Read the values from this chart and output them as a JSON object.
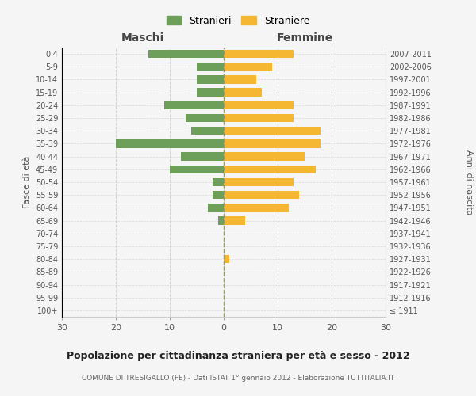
{
  "age_groups": [
    "100+",
    "95-99",
    "90-94",
    "85-89",
    "80-84",
    "75-79",
    "70-74",
    "65-69",
    "60-64",
    "55-59",
    "50-54",
    "45-49",
    "40-44",
    "35-39",
    "30-34",
    "25-29",
    "20-24",
    "15-19",
    "10-14",
    "5-9",
    "0-4"
  ],
  "birth_years": [
    "≤ 1911",
    "1912-1916",
    "1917-1921",
    "1922-1926",
    "1927-1931",
    "1932-1936",
    "1937-1941",
    "1942-1946",
    "1947-1951",
    "1952-1956",
    "1957-1961",
    "1962-1966",
    "1967-1971",
    "1972-1976",
    "1977-1981",
    "1982-1986",
    "1987-1991",
    "1992-1996",
    "1997-2001",
    "2002-2006",
    "2007-2011"
  ],
  "males": [
    0,
    0,
    0,
    0,
    0,
    0,
    0,
    1,
    3,
    2,
    2,
    10,
    8,
    20,
    6,
    7,
    11,
    5,
    5,
    5,
    14
  ],
  "females": [
    0,
    0,
    0,
    0,
    1,
    0,
    0,
    4,
    12,
    14,
    13,
    17,
    15,
    18,
    18,
    13,
    13,
    7,
    6,
    9,
    13
  ],
  "male_color": "#6d9e5a",
  "female_color": "#f5b731",
  "background_color": "#f5f5f5",
  "grid_color": "#cccccc",
  "center_line_color": "#999966",
  "xlim": 30,
  "title": "Popolazione per cittadinanza straniera per età e sesso - 2012",
  "subtitle": "COMUNE DI TRESIGALLO (FE) - Dati ISTAT 1° gennaio 2012 - Elaborazione TUTTITALIA.IT",
  "left_label": "Maschi",
  "right_label": "Femmine",
  "ylabel_left": "Fasce di età",
  "ylabel_right": "Anni di nascita",
  "legend_male": "Stranieri",
  "legend_female": "Straniere"
}
